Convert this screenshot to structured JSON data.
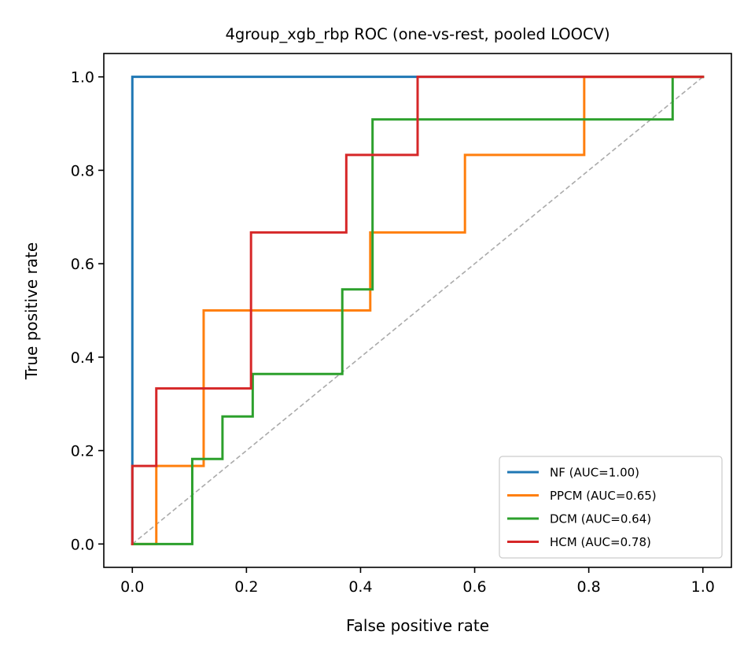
{
  "chart_data": {
    "type": "line",
    "title": "4group_xgb_rbp ROC (one-vs-rest, pooled LOOCV)",
    "xlabel": "False positive rate",
    "ylabel": "True positive rate",
    "xlim": [
      -0.05,
      1.05
    ],
    "ylim": [
      -0.05,
      1.05
    ],
    "xticks": [
      0.0,
      0.2,
      0.4,
      0.6,
      0.8,
      1.0
    ],
    "yticks": [
      0.0,
      0.2,
      0.4,
      0.6,
      0.8,
      1.0
    ],
    "xtick_labels": [
      "0.0",
      "0.2",
      "0.4",
      "0.6",
      "0.8",
      "1.0"
    ],
    "ytick_labels": [
      "0.0",
      "0.2",
      "0.4",
      "0.6",
      "0.8",
      "1.0"
    ],
    "grid": false,
    "legend_position": "bottom-right",
    "reference_line": {
      "x": [
        0,
        1
      ],
      "y": [
        0,
        1
      ],
      "color": "#aaaaaa",
      "style": "dashed"
    },
    "series": [
      {
        "name": "NF (AUC=1.00)",
        "color": "#1f77b4",
        "x": [
          0,
          0,
          0.5,
          1
        ],
        "y": [
          0,
          1,
          1,
          1
        ]
      },
      {
        "name": "PPCM (AUC=0.65)",
        "color": "#ff7f0e",
        "x": [
          0,
          0.042,
          0.042,
          0.125,
          0.125,
          0.417,
          0.417,
          0.583,
          0.583,
          0.792,
          0.792,
          1
        ],
        "y": [
          0,
          0,
          0.167,
          0.167,
          0.5,
          0.5,
          0.667,
          0.667,
          0.833,
          0.833,
          1,
          1
        ]
      },
      {
        "name": "DCM (AUC=0.64)",
        "color": "#2ca02c",
        "x": [
          0,
          0.105,
          0.105,
          0.158,
          0.158,
          0.211,
          0.211,
          0.368,
          0.368,
          0.421,
          0.421,
          0.947,
          0.947,
          1
        ],
        "y": [
          0,
          0,
          0.182,
          0.182,
          0.273,
          0.273,
          0.364,
          0.364,
          0.545,
          0.545,
          0.909,
          0.909,
          1,
          1
        ]
      },
      {
        "name": "HCM (AUC=0.78)",
        "color": "#d62728",
        "x": [
          0,
          0,
          0.042,
          0.042,
          0.208,
          0.208,
          0.375,
          0.375,
          0.5,
          0.5,
          1
        ],
        "y": [
          0,
          0.167,
          0.167,
          0.333,
          0.333,
          0.667,
          0.667,
          0.833,
          0.833,
          1,
          1
        ]
      }
    ]
  }
}
